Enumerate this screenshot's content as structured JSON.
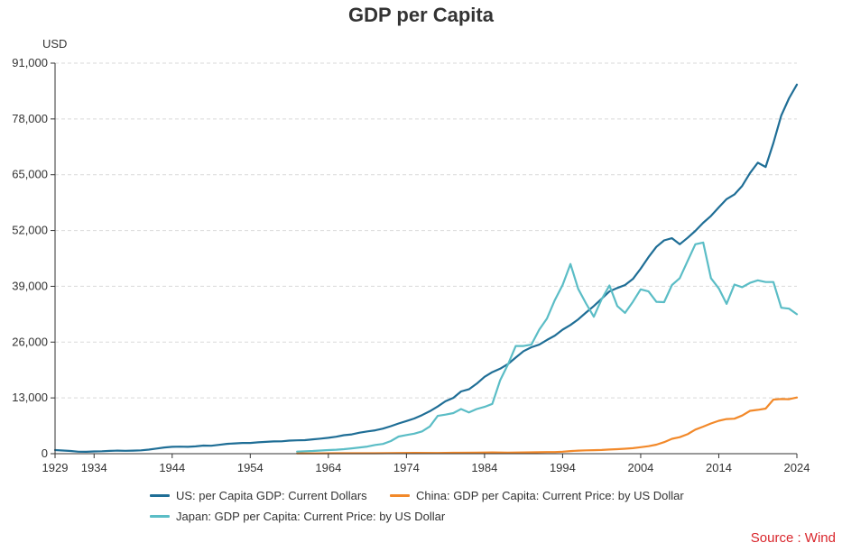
{
  "colors": {
    "us": "#1f6e96",
    "china": "#f2892a",
    "japan": "#5bbdc6",
    "source": "#d9262c",
    "grid": "#d9d9d9",
    "axis": "#333333"
  },
  "chart_data": {
    "type": "line",
    "title": "GDP per Capita",
    "ylabel": "USD",
    "xlabel": "",
    "xlim": [
      1929,
      2024
    ],
    "ylim": [
      0,
      91000
    ],
    "y_ticks": [
      0,
      13000,
      26000,
      39000,
      52000,
      65000,
      78000,
      91000
    ],
    "y_tick_labels": [
      "0",
      "13,000",
      "26,000",
      "39,000",
      "52,000",
      "65,000",
      "78,000",
      "91,000"
    ],
    "x_ticks": [
      1929,
      1934,
      1944,
      1954,
      1964,
      1974,
      1984,
      1994,
      2004,
      2014,
      2024
    ],
    "x_tick_labels": [
      "1929",
      "1934",
      "1944",
      "1954",
      "1964",
      "1974",
      "1984",
      "1994",
      "2004",
      "2014",
      "2024"
    ],
    "grid": true,
    "legend_position": "bottom",
    "series": [
      {
        "name": "US: per Capita GDP: Current Dollars",
        "key": "us",
        "points": [
          [
            1929,
            850
          ],
          [
            1930,
            740
          ],
          [
            1931,
            620
          ],
          [
            1932,
            470
          ],
          [
            1933,
            450
          ],
          [
            1934,
            520
          ],
          [
            1935,
            570
          ],
          [
            1936,
            650
          ],
          [
            1937,
            720
          ],
          [
            1938,
            680
          ],
          [
            1939,
            720
          ],
          [
            1940,
            770
          ],
          [
            1941,
            950
          ],
          [
            1942,
            1200
          ],
          [
            1943,
            1450
          ],
          [
            1944,
            1600
          ],
          [
            1945,
            1630
          ],
          [
            1946,
            1600
          ],
          [
            1947,
            1700
          ],
          [
            1948,
            1900
          ],
          [
            1949,
            1850
          ],
          [
            1950,
            2050
          ],
          [
            1951,
            2300
          ],
          [
            1952,
            2400
          ],
          [
            1953,
            2500
          ],
          [
            1954,
            2500
          ],
          [
            1955,
            2650
          ],
          [
            1956,
            2750
          ],
          [
            1957,
            2850
          ],
          [
            1958,
            2870
          ],
          [
            1959,
            3050
          ],
          [
            1960,
            3100
          ],
          [
            1961,
            3150
          ],
          [
            1962,
            3350
          ],
          [
            1963,
            3500
          ],
          [
            1964,
            3700
          ],
          [
            1965,
            3950
          ],
          [
            1966,
            4300
          ],
          [
            1967,
            4500
          ],
          [
            1968,
            4900
          ],
          [
            1969,
            5200
          ],
          [
            1970,
            5450
          ],
          [
            1971,
            5850
          ],
          [
            1972,
            6400
          ],
          [
            1973,
            7050
          ],
          [
            1974,
            7600
          ],
          [
            1975,
            8200
          ],
          [
            1976,
            9000
          ],
          [
            1977,
            9900
          ],
          [
            1978,
            11000
          ],
          [
            1979,
            12200
          ],
          [
            1980,
            13000
          ],
          [
            1981,
            14500
          ],
          [
            1982,
            15000
          ],
          [
            1983,
            16300
          ],
          [
            1984,
            17900
          ],
          [
            1985,
            19000
          ],
          [
            1986,
            19800
          ],
          [
            1987,
            20900
          ],
          [
            1988,
            22400
          ],
          [
            1989,
            23900
          ],
          [
            1990,
            24800
          ],
          [
            1991,
            25400
          ],
          [
            1992,
            26500
          ],
          [
            1993,
            27500
          ],
          [
            1994,
            28900
          ],
          [
            1995,
            30000
          ],
          [
            1996,
            31300
          ],
          [
            1997,
            32900
          ],
          [
            1998,
            34400
          ],
          [
            1999,
            36100
          ],
          [
            2000,
            37800
          ],
          [
            2001,
            38600
          ],
          [
            2002,
            39300
          ],
          [
            2003,
            40700
          ],
          [
            2004,
            43100
          ],
          [
            2005,
            45800
          ],
          [
            2006,
            48200
          ],
          [
            2007,
            49700
          ],
          [
            2008,
            50200
          ],
          [
            2009,
            48800
          ],
          [
            2010,
            50300
          ],
          [
            2011,
            51900
          ],
          [
            2012,
            53800
          ],
          [
            2013,
            55400
          ],
          [
            2014,
            57400
          ],
          [
            2015,
            59300
          ],
          [
            2016,
            60400
          ],
          [
            2017,
            62400
          ],
          [
            2018,
            65400
          ],
          [
            2019,
            67800
          ],
          [
            2020,
            66800
          ],
          [
            2021,
            72400
          ],
          [
            2022,
            78800
          ],
          [
            2023,
            82800
          ],
          [
            2024,
            86000
          ]
        ]
      },
      {
        "name": "China: GDP per Capita: Current Price: by US Dollar",
        "key": "china",
        "points": [
          [
            1960,
            90
          ],
          [
            1962,
            70
          ],
          [
            1965,
            100
          ],
          [
            1970,
            110
          ],
          [
            1975,
            180
          ],
          [
            1978,
            160
          ],
          [
            1980,
            200
          ],
          [
            1983,
            250
          ],
          [
            1985,
            300
          ],
          [
            1987,
            260
          ],
          [
            1990,
            320
          ],
          [
            1992,
            370
          ],
          [
            1993,
            380
          ],
          [
            1994,
            470
          ],
          [
            1995,
            610
          ],
          [
            1996,
            710
          ],
          [
            1997,
            780
          ],
          [
            1998,
            830
          ],
          [
            1999,
            870
          ],
          [
            2000,
            960
          ],
          [
            2001,
            1050
          ],
          [
            2002,
            1150
          ],
          [
            2003,
            1290
          ],
          [
            2004,
            1510
          ],
          [
            2005,
            1750
          ],
          [
            2006,
            2100
          ],
          [
            2007,
            2700
          ],
          [
            2008,
            3470
          ],
          [
            2009,
            3840
          ],
          [
            2010,
            4550
          ],
          [
            2011,
            5610
          ],
          [
            2012,
            6300
          ],
          [
            2013,
            7050
          ],
          [
            2014,
            7680
          ],
          [
            2015,
            8070
          ],
          [
            2016,
            8150
          ],
          [
            2017,
            8880
          ],
          [
            2018,
            9980
          ],
          [
            2019,
            10220
          ],
          [
            2020,
            10500
          ],
          [
            2021,
            12620
          ],
          [
            2022,
            12730
          ],
          [
            2023,
            12700
          ],
          [
            2024,
            13100
          ]
        ]
      },
      {
        "name": "Japan: GDP per Capita: Current Price: by US Dollar",
        "key": "japan",
        "points": [
          [
            1960,
            480
          ],
          [
            1961,
            560
          ],
          [
            1962,
            630
          ],
          [
            1963,
            730
          ],
          [
            1964,
            840
          ],
          [
            1965,
            920
          ],
          [
            1966,
            1060
          ],
          [
            1967,
            1230
          ],
          [
            1968,
            1450
          ],
          [
            1969,
            1670
          ],
          [
            1970,
            2040
          ],
          [
            1971,
            2270
          ],
          [
            1972,
            2950
          ],
          [
            1973,
            3990
          ],
          [
            1974,
            4350
          ],
          [
            1975,
            4660
          ],
          [
            1976,
            5200
          ],
          [
            1977,
            6340
          ],
          [
            1978,
            8800
          ],
          [
            1979,
            9100
          ],
          [
            1980,
            9460
          ],
          [
            1981,
            10400
          ],
          [
            1982,
            9600
          ],
          [
            1983,
            10400
          ],
          [
            1984,
            10900
          ],
          [
            1985,
            11600
          ],
          [
            1986,
            17100
          ],
          [
            1987,
            20800
          ],
          [
            1988,
            25100
          ],
          [
            1989,
            25100
          ],
          [
            1990,
            25400
          ],
          [
            1991,
            28900
          ],
          [
            1992,
            31500
          ],
          [
            1993,
            35800
          ],
          [
            1994,
            39300
          ],
          [
            1995,
            44200
          ],
          [
            1996,
            38400
          ],
          [
            1997,
            35000
          ],
          [
            1998,
            31900
          ],
          [
            1999,
            36000
          ],
          [
            2000,
            39200
          ],
          [
            2001,
            34400
          ],
          [
            2002,
            32800
          ],
          [
            2003,
            35400
          ],
          [
            2004,
            38300
          ],
          [
            2005,
            37800
          ],
          [
            2006,
            35400
          ],
          [
            2007,
            35300
          ],
          [
            2008,
            39300
          ],
          [
            2009,
            40900
          ],
          [
            2010,
            44900
          ],
          [
            2011,
            48800
          ],
          [
            2012,
            49200
          ],
          [
            2013,
            40900
          ],
          [
            2014,
            38500
          ],
          [
            2015,
            34900
          ],
          [
            2016,
            39400
          ],
          [
            2017,
            38800
          ],
          [
            2018,
            39800
          ],
          [
            2019,
            40400
          ],
          [
            2020,
            40000
          ],
          [
            2021,
            40000
          ],
          [
            2022,
            34000
          ],
          [
            2023,
            33800
          ],
          [
            2024,
            32500
          ]
        ]
      }
    ]
  },
  "source": "Source : Wind"
}
